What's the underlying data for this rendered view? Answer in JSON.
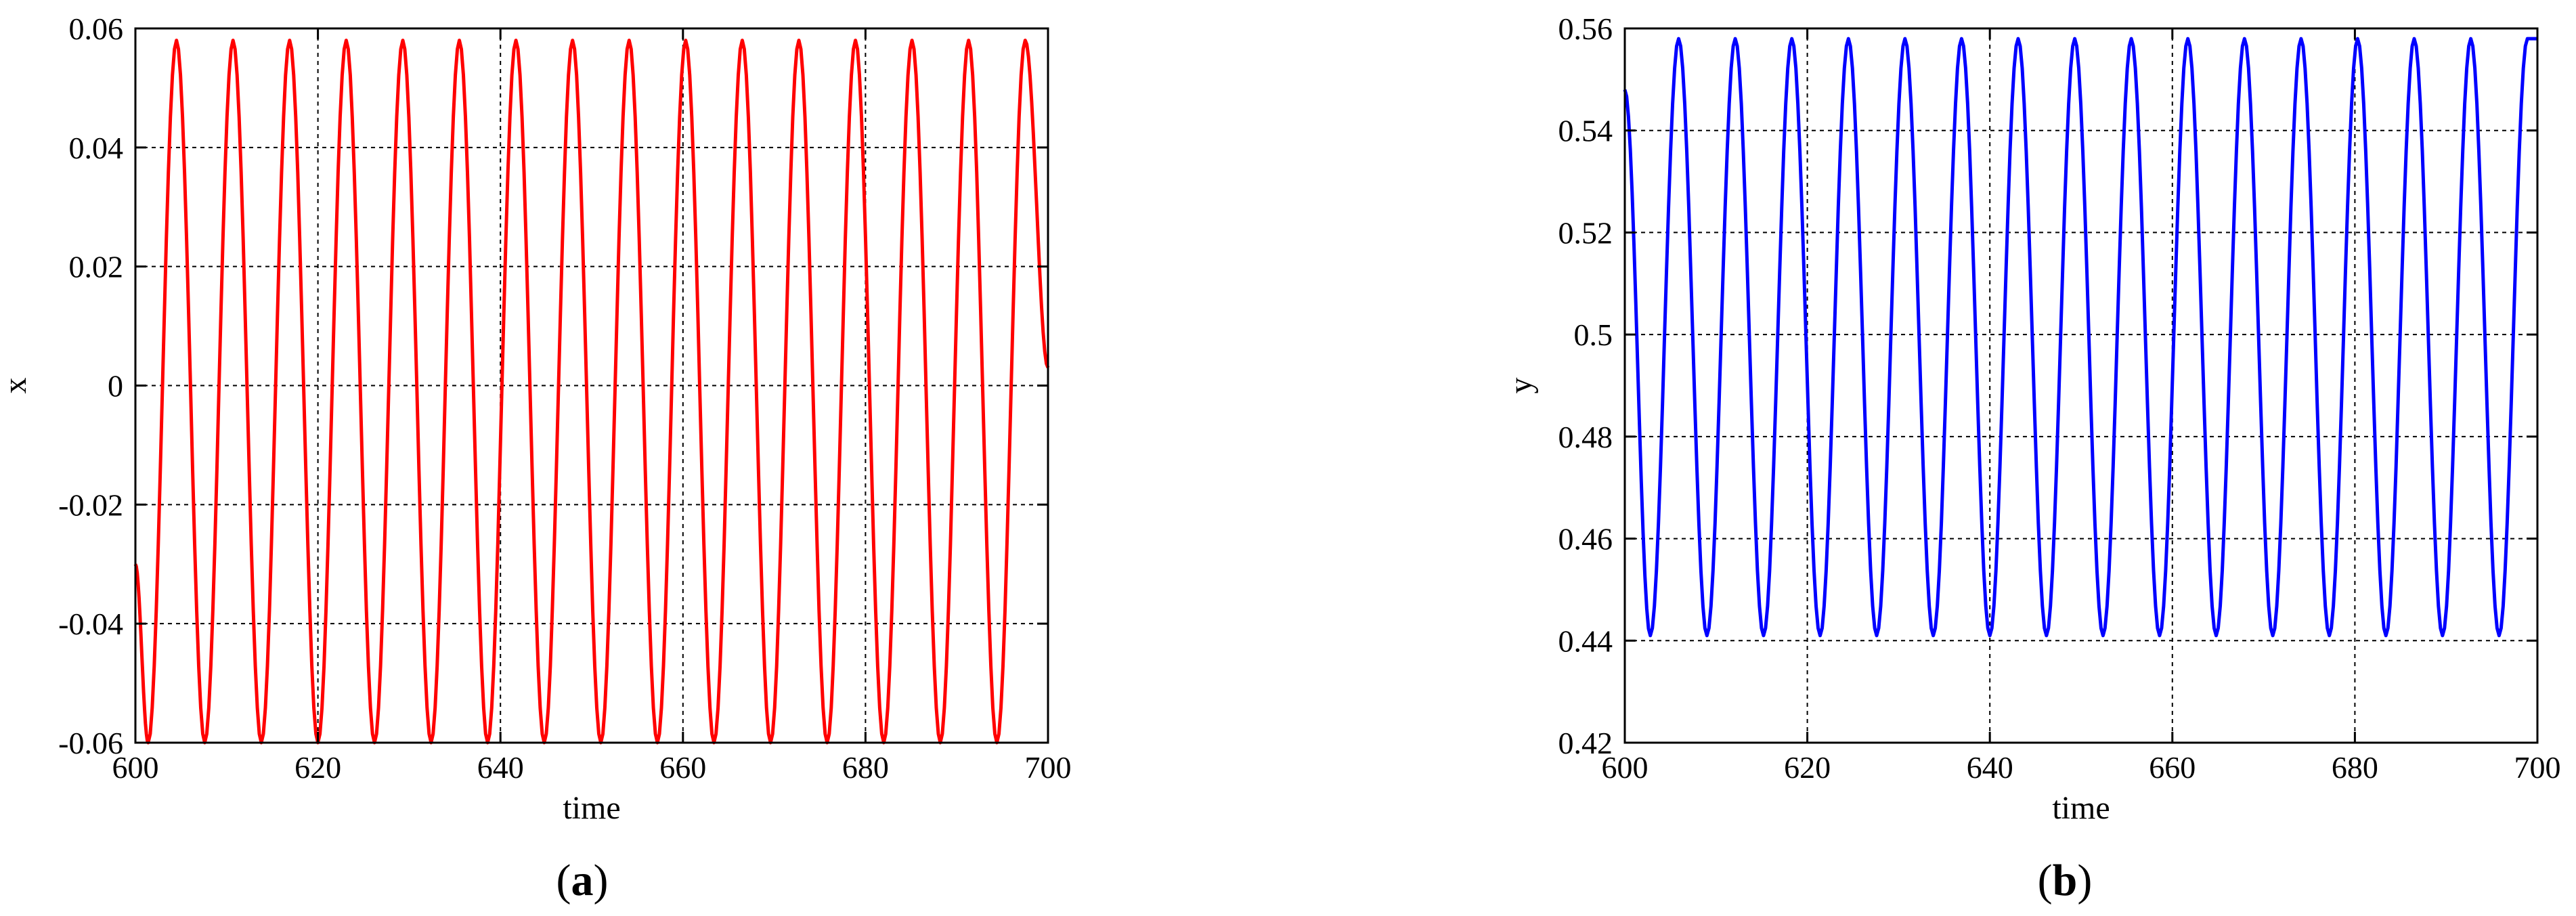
{
  "chart_data": [
    {
      "type": "line",
      "panel_label": "a",
      "title": "",
      "xlabel": "time",
      "ylabel": "x",
      "xlim": [
        600,
        700
      ],
      "ylim": [
        -0.06,
        0.06
      ],
      "xticks": [
        600,
        620,
        640,
        660,
        680,
        700
      ],
      "yticks": [
        -0.06,
        -0.04,
        -0.02,
        0,
        0.02,
        0.04,
        0.06
      ],
      "xtick_labels": [
        "600",
        "620",
        "640",
        "660",
        "680",
        "700"
      ],
      "ytick_labels": [
        "-0.06",
        "-0.04",
        "-0.02",
        "0",
        "0.02",
        "0.04",
        "0.06"
      ],
      "grid": true,
      "legend": "none",
      "series": [
        {
          "color": "#ff0000",
          "peaks": [
            [
              604.5,
              0.058
            ],
            [
              610.7,
              0.058
            ],
            [
              616.9,
              0.058
            ],
            [
              623.1,
              0.058
            ],
            [
              629.3,
              0.058
            ],
            [
              635.5,
              0.058
            ],
            [
              641.7,
              0.058
            ],
            [
              647.9,
              0.058
            ],
            [
              654.1,
              0.058
            ],
            [
              660.3,
              0.058
            ],
            [
              666.5,
              0.058
            ],
            [
              672.7,
              0.058
            ],
            [
              678.9,
              0.058
            ],
            [
              685.1,
              0.058
            ],
            [
              691.3,
              0.058
            ],
            [
              697.5,
              0.058
            ]
          ],
          "troughs": [
            [
              601.4,
              -0.06
            ],
            [
              607.6,
              -0.06
            ],
            [
              613.8,
              -0.06
            ],
            [
              620.0,
              -0.06
            ],
            [
              626.2,
              -0.06
            ],
            [
              632.4,
              -0.06
            ],
            [
              638.6,
              -0.06
            ],
            [
              644.8,
              -0.06
            ],
            [
              651.0,
              -0.06
            ],
            [
              657.2,
              -0.06
            ],
            [
              663.4,
              -0.06
            ],
            [
              669.6,
              -0.06
            ],
            [
              675.8,
              -0.06
            ],
            [
              682.0,
              -0.06
            ],
            [
              688.2,
              -0.06
            ],
            [
              694.4,
              -0.06
            ]
          ],
          "start": [
            600,
            -0.03
          ],
          "end": [
            700,
            0.003
          ]
        }
      ]
    },
    {
      "type": "line",
      "panel_label": "b",
      "title": "",
      "xlabel": "time",
      "ylabel": "y",
      "xlim": [
        600,
        700
      ],
      "ylim": [
        0.42,
        0.56
      ],
      "xticks": [
        600,
        620,
        640,
        660,
        680,
        700
      ],
      "yticks": [
        0.42,
        0.44,
        0.46,
        0.48,
        0.5,
        0.52,
        0.54,
        0.56
      ],
      "xtick_labels": [
        "600",
        "620",
        "640",
        "660",
        "680",
        "700"
      ],
      "ytick_labels": [
        "0.42",
        "0.44",
        "0.46",
        "0.48",
        "0.5",
        "0.52",
        "0.54",
        "0.56"
      ],
      "grid": true,
      "legend": "none",
      "series": [
        {
          "color": "#0000ff",
          "peaks": [
            [
              605.9,
              0.558
            ],
            [
              612.1,
              0.558
            ],
            [
              618.3,
              0.558
            ],
            [
              624.5,
              0.558
            ],
            [
              630.7,
              0.558
            ],
            [
              636.9,
              0.558
            ],
            [
              643.1,
              0.558
            ],
            [
              649.3,
              0.558
            ],
            [
              655.5,
              0.558
            ],
            [
              661.7,
              0.558
            ],
            [
              667.9,
              0.558
            ],
            [
              674.1,
              0.558
            ],
            [
              680.3,
              0.558
            ],
            [
              686.5,
              0.558
            ],
            [
              692.7,
              0.558
            ],
            [
              698.9,
              0.558
            ]
          ],
          "troughs": [
            [
              602.8,
              0.441
            ],
            [
              609.0,
              0.441
            ],
            [
              615.2,
              0.441
            ],
            [
              621.4,
              0.441
            ],
            [
              627.6,
              0.441
            ],
            [
              633.8,
              0.441
            ],
            [
              640.0,
              0.441
            ],
            [
              646.2,
              0.441
            ],
            [
              652.4,
              0.441
            ],
            [
              658.6,
              0.441
            ],
            [
              664.8,
              0.441
            ],
            [
              671.0,
              0.441
            ],
            [
              677.2,
              0.441
            ],
            [
              683.4,
              0.441
            ],
            [
              689.6,
              0.441
            ],
            [
              695.8,
              0.441
            ]
          ],
          "start": [
            600,
            0.548
          ],
          "end": [
            700,
            0.558
          ]
        }
      ]
    }
  ],
  "captions": [
    {
      "open": "(",
      "label": "a",
      "close": ")"
    },
    {
      "open": "(",
      "label": "b",
      "close": ")"
    }
  ]
}
